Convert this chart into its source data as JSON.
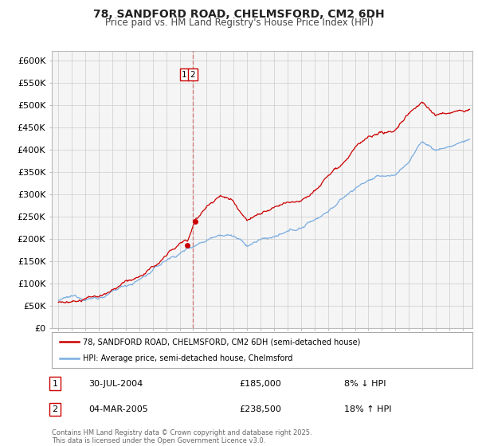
{
  "title": "78, SANDFORD ROAD, CHELMSFORD, CM2 6DH",
  "subtitle": "Price paid vs. HM Land Registry's House Price Index (HPI)",
  "legend_line1": "78, SANDFORD ROAD, CHELMSFORD, CM2 6DH (semi-detached house)",
  "legend_line2": "HPI: Average price, semi-detached house, Chelmsford",
  "red_color": "#cc0000",
  "blue_color": "#7aade0",
  "vline_color": "#cc6666",
  "background_color": "#f5f5f5",
  "grid_color": "#cccccc",
  "footnote": "Contains HM Land Registry data © Crown copyright and database right 2025.\nThis data is licensed under the Open Government Licence v3.0.",
  "transaction1_label": "1",
  "transaction1_date": "30-JUL-2004",
  "transaction1_price": "£185,000",
  "transaction1_hpi": "8% ↓ HPI",
  "transaction1_x": 2004.58,
  "transaction1_y": 185000,
  "transaction2_label": "2",
  "transaction2_date": "04-MAR-2005",
  "transaction2_price": "£238,500",
  "transaction2_hpi": "18% ↑ HPI",
  "transaction2_x": 2005.17,
  "transaction2_y": 238500,
  "vline_x": 2005.0,
  "ylim": [
    0,
    620000
  ],
  "xlim_start": 1994.5,
  "xlim_end": 2025.7,
  "yticks": [
    0,
    50000,
    100000,
    150000,
    200000,
    250000,
    300000,
    350000,
    400000,
    450000,
    500000,
    550000,
    600000
  ],
  "ytick_labels": [
    "£0",
    "£50K",
    "£100K",
    "£150K",
    "£200K",
    "£250K",
    "£300K",
    "£350K",
    "£400K",
    "£450K",
    "£500K",
    "£550K",
    "£600K"
  ],
  "xticks": [
    1995,
    1996,
    1997,
    1998,
    1999,
    2000,
    2001,
    2002,
    2003,
    2004,
    2005,
    2006,
    2007,
    2008,
    2009,
    2010,
    2011,
    2012,
    2013,
    2014,
    2015,
    2016,
    2017,
    2018,
    2019,
    2020,
    2021,
    2022,
    2023,
    2024,
    2025
  ]
}
